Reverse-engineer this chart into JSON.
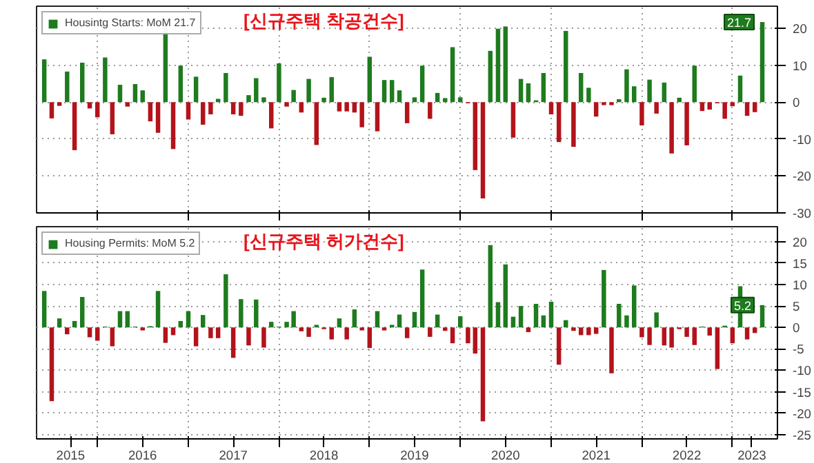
{
  "chart_data": [
    {
      "type": "bar",
      "title": "[신규주택 착공건수]",
      "legend": "top left",
      "grid": true,
      "tick_labels": "y",
      "x": [
        "2015-06",
        "2015-07",
        "2015-08",
        "2015-09",
        "2015-10",
        "2015-11",
        "2015-12",
        "2016-01",
        "2016-02",
        "2016-03",
        "2016-04",
        "2016-05",
        "2016-06",
        "2016-07",
        "2016-08",
        "2016-09",
        "2016-10",
        "2016-11",
        "2016-12",
        "2017-01",
        "2017-02",
        "2017-03",
        "2017-04",
        "2017-05",
        "2017-06",
        "2017-07",
        "2017-08",
        "2017-09",
        "2017-10",
        "2017-11",
        "2017-12",
        "2018-01",
        "2018-02",
        "2018-03",
        "2018-04",
        "2018-05",
        "2018-06",
        "2018-07",
        "2018-08",
        "2018-09",
        "2018-10",
        "2018-11",
        "2018-12",
        "2019-01",
        "2019-02",
        "2019-03",
        "2019-04",
        "2019-05",
        "2019-06",
        "2019-07",
        "2019-08",
        "2019-09",
        "2019-10",
        "2019-11",
        "2019-12",
        "2020-01",
        "2020-02",
        "2020-03",
        "2020-04",
        "2020-05",
        "2020-06",
        "2020-07",
        "2020-08",
        "2020-09",
        "2020-10",
        "2020-11",
        "2020-12",
        "2021-01",
        "2021-02",
        "2021-03",
        "2021-04",
        "2021-05",
        "2021-06",
        "2021-07",
        "2021-08",
        "2021-09",
        "2021-10",
        "2021-11",
        "2021-12",
        "2022-01",
        "2022-02",
        "2022-03",
        "2022-04",
        "2022-05",
        "2022-06",
        "2022-07",
        "2022-08",
        "2022-09",
        "2022-10",
        "2022-11",
        "2022-12",
        "2023-01",
        "2023-02",
        "2023-03",
        "2023-04",
        "2023-05"
      ],
      "xlim": [
        "2015-05",
        "2023-07"
      ],
      "xticks": [
        {
          "value": "2016-01",
          "label": null
        },
        {
          "value": "2017-01",
          "label": null
        },
        {
          "value": "2018-01",
          "label": null
        },
        {
          "value": "2019-01",
          "label": null
        },
        {
          "value": "2020-01",
          "label": null
        },
        {
          "value": "2021-01",
          "label": null
        },
        {
          "value": "2022-01",
          "label": null
        },
        {
          "value": "2023-01",
          "label": null
        }
      ],
      "ylim": [
        -30,
        26
      ],
      "yticks": [
        20,
        10,
        0,
        -10,
        -20,
        -30
      ],
      "annotations": [
        {
          "text": "21.7",
          "x": "2023-05",
          "y": 21.7
        }
      ],
      "series": [
        {
          "name": "Housintg Starts: MoM 21.7",
          "values": [
            11.6,
            -4.4,
            -1,
            8.3,
            -13,
            10.7,
            -1.7,
            -4.1,
            12.1,
            -8.7,
            4.7,
            -1.2,
            4.9,
            3.2,
            -5.2,
            -8.3,
            22.7,
            -12.7,
            9.9,
            -4.7,
            6.9,
            -6.1,
            -3.3,
            0.9,
            7.9,
            -3.3,
            -3.7,
            1.9,
            6.5,
            1.3,
            -7.1,
            10.5,
            -1.2,
            3.3,
            -2.8,
            6.3,
            -11.6,
            1.2,
            6.8,
            -2.5,
            -2.5,
            -2.8,
            -6.8,
            12.3,
            -7.9,
            6,
            6,
            3.2,
            -5.7,
            1.3,
            9.9,
            -4.5,
            2.5,
            1.1,
            14.9,
            1.3,
            -0.3,
            -18.4,
            -26.1,
            13.9,
            19.9,
            20.5,
            -9.6,
            6.3,
            5.1,
            0.5,
            7.9,
            -3.3,
            -10.8,
            19.3,
            -12.1,
            7.9,
            3.9,
            -3.9,
            -0.8,
            -0.8,
            0.8,
            8.9,
            4.3,
            -6.3,
            6.1,
            -3.1,
            5.3,
            -13.9,
            1.2,
            -11.7,
            9.9,
            -2.4,
            -2,
            -0.3,
            -4.5,
            -1.1,
            7.2,
            -3.7,
            -2.7,
            21.7
          ],
          "colors": [
            "#1e7b1e",
            "#b3131b",
            "#b3131b",
            "#1e7b1e",
            "#b3131b",
            "#1e7b1e",
            "#b3131b",
            "#b3131b",
            "#1e7b1e",
            "#b3131b",
            "#1e7b1e",
            "#b3131b",
            "#1e7b1e",
            "#1e7b1e",
            "#b3131b",
            "#b3131b",
            "#1e7b1e",
            "#b3131b",
            "#1e7b1e",
            "#b3131b",
            "#1e7b1e",
            "#b3131b",
            "#b3131b",
            "#1e7b1e",
            "#1e7b1e",
            "#b3131b",
            "#b3131b",
            "#1e7b1e",
            "#1e7b1e",
            "#1e7b1e",
            "#b3131b",
            "#1e7b1e",
            "#b3131b",
            "#1e7b1e",
            "#b3131b",
            "#1e7b1e",
            "#b3131b",
            "#1e7b1e",
            "#1e7b1e",
            "#b3131b",
            "#b3131b",
            "#b3131b",
            "#b3131b",
            "#1e7b1e",
            "#b3131b",
            "#1e7b1e",
            "#1e7b1e",
            "#1e7b1e",
            "#b3131b",
            "#1e7b1e",
            "#1e7b1e",
            "#b3131b",
            "#1e7b1e",
            "#1e7b1e",
            "#1e7b1e",
            "#1e7b1e",
            "#b3131b",
            "#b3131b",
            "#b3131b",
            "#1e7b1e",
            "#1e7b1e",
            "#1e7b1e",
            "#b3131b",
            "#1e7b1e",
            "#1e7b1e",
            "#1e7b1e",
            "#1e7b1e",
            "#b3131b",
            "#b3131b",
            "#1e7b1e",
            "#b3131b",
            "#1e7b1e",
            "#1e7b1e",
            "#b3131b",
            "#b3131b",
            "#b3131b",
            "#1e7b1e",
            "#1e7b1e",
            "#1e7b1e",
            "#b3131b",
            "#1e7b1e",
            "#b3131b",
            "#1e7b1e",
            "#b3131b",
            "#1e7b1e",
            "#b3131b",
            "#1e7b1e",
            "#b3131b",
            "#b3131b",
            "#b3131b",
            "#b3131b",
            "#b3131b",
            "#1e7b1e",
            "#b3131b",
            "#b3131b",
            "#1e7b1e"
          ]
        }
      ]
    },
    {
      "type": "bar",
      "title": "[신규주택 허가건수]",
      "legend": "top left",
      "grid": true,
      "x": [
        "2015-06",
        "2015-07",
        "2015-08",
        "2015-09",
        "2015-10",
        "2015-11",
        "2015-12",
        "2016-01",
        "2016-02",
        "2016-03",
        "2016-04",
        "2016-05",
        "2016-06",
        "2016-07",
        "2016-08",
        "2016-09",
        "2016-10",
        "2016-11",
        "2016-12",
        "2017-01",
        "2017-02",
        "2017-03",
        "2017-04",
        "2017-05",
        "2017-06",
        "2017-07",
        "2017-08",
        "2017-09",
        "2017-10",
        "2017-11",
        "2017-12",
        "2018-01",
        "2018-02",
        "2018-03",
        "2018-04",
        "2018-05",
        "2018-06",
        "2018-07",
        "2018-08",
        "2018-09",
        "2018-10",
        "2018-11",
        "2018-12",
        "2019-01",
        "2019-02",
        "2019-03",
        "2019-04",
        "2019-05",
        "2019-06",
        "2019-07",
        "2019-08",
        "2019-09",
        "2019-10",
        "2019-11",
        "2019-12",
        "2020-01",
        "2020-02",
        "2020-03",
        "2020-04",
        "2020-05",
        "2020-06",
        "2020-07",
        "2020-08",
        "2020-09",
        "2020-10",
        "2020-11",
        "2020-12",
        "2021-01",
        "2021-02",
        "2021-03",
        "2021-04",
        "2021-05",
        "2021-06",
        "2021-07",
        "2021-08",
        "2021-09",
        "2021-10",
        "2021-11",
        "2021-12",
        "2022-01",
        "2022-02",
        "2022-03",
        "2022-04",
        "2022-05",
        "2022-06",
        "2022-07",
        "2022-08",
        "2022-09",
        "2022-10",
        "2022-11",
        "2022-12",
        "2023-01",
        "2023-02",
        "2023-03",
        "2023-04",
        "2023-05"
      ],
      "xlim": [
        "2015-05",
        "2023-07"
      ],
      "xticks": [
        {
          "value": "2015-09-15",
          "label": "2015"
        },
        {
          "value": "2016-01",
          "label": null
        },
        {
          "value": "2016-07",
          "label": "2016"
        },
        {
          "value": "2017-01",
          "label": null
        },
        {
          "value": "2017-07",
          "label": "2017"
        },
        {
          "value": "2018-01",
          "label": null
        },
        {
          "value": "2018-07",
          "label": "2018"
        },
        {
          "value": "2019-01",
          "label": null
        },
        {
          "value": "2019-07",
          "label": "2019"
        },
        {
          "value": "2020-01",
          "label": null
        },
        {
          "value": "2020-07",
          "label": "2020"
        },
        {
          "value": "2021-01",
          "label": null
        },
        {
          "value": "2021-07",
          "label": "2021"
        },
        {
          "value": "2022-01",
          "label": null
        },
        {
          "value": "2022-07",
          "label": "2022"
        },
        {
          "value": "2023-01",
          "label": null
        },
        {
          "value": "2023-03-20",
          "label": "2023"
        }
      ],
      "ylim": [
        -26,
        23.5
      ],
      "yticks": [
        20,
        15,
        10,
        5,
        0,
        -5,
        -10,
        -15,
        -20,
        -25
      ],
      "annotations": [
        {
          "text": "5.2",
          "x": "2023-05",
          "y": 5.2
        }
      ],
      "series": [
        {
          "name": "Housing Permits: MoM 5.2",
          "values": [
            8.5,
            -17.2,
            2.1,
            -1.6,
            1.5,
            7.1,
            -2.3,
            -3.1,
            0.2,
            -4.4,
            3.8,
            3.8,
            0.2,
            -0.7,
            0.3,
            8.5,
            -3.6,
            -1.8,
            1.5,
            3.8,
            -4.4,
            2.9,
            -2.5,
            -2.5,
            12.4,
            -7.1,
            6.6,
            -4.2,
            6.5,
            -4.7,
            1.3,
            0.2,
            1.3,
            3.8,
            -0.9,
            -2.2,
            0.6,
            -0.4,
            -2.8,
            2.1,
            -2.8,
            4.2,
            -0.7,
            -4.8,
            3.8,
            -0.7,
            0.6,
            3.0,
            -2.5,
            3.6,
            13.5,
            -2.2,
            3.0,
            -0.8,
            -3.7,
            2.6,
            -3.7,
            -6.1,
            -21.9,
            19.2,
            5.9,
            14.7,
            2.5,
            5.0,
            -1.1,
            5.5,
            2.8,
            6.0,
            -8.7,
            1.7,
            -0.8,
            -1.8,
            -1.8,
            -1.5,
            13.4,
            -10.7,
            5.5,
            2.8,
            9.8,
            -2.3,
            -4.1,
            3.5,
            -4.2,
            -4.7,
            -0.4,
            -2.2,
            -4.1,
            0.2,
            -1.9,
            -9.7,
            0.4,
            -3.7,
            9.6,
            -2.8,
            -1.3,
            5.2
          ],
          "colors": [
            "#1e7b1e",
            "#b3131b",
            "#1e7b1e",
            "#b3131b",
            "#1e7b1e",
            "#1e7b1e",
            "#b3131b",
            "#b3131b",
            "#1e7b1e",
            "#b3131b",
            "#1e7b1e",
            "#1e7b1e",
            "#1e7b1e",
            "#b3131b",
            "#1e7b1e",
            "#1e7b1e",
            "#b3131b",
            "#b3131b",
            "#1e7b1e",
            "#1e7b1e",
            "#b3131b",
            "#1e7b1e",
            "#b3131b",
            "#b3131b",
            "#1e7b1e",
            "#b3131b",
            "#1e7b1e",
            "#b3131b",
            "#1e7b1e",
            "#b3131b",
            "#1e7b1e",
            "#1e7b1e",
            "#1e7b1e",
            "#1e7b1e",
            "#b3131b",
            "#b3131b",
            "#1e7b1e",
            "#b3131b",
            "#b3131b",
            "#1e7b1e",
            "#b3131b",
            "#1e7b1e",
            "#b3131b",
            "#b3131b",
            "#1e7b1e",
            "#b3131b",
            "#1e7b1e",
            "#1e7b1e",
            "#b3131b",
            "#1e7b1e",
            "#1e7b1e",
            "#b3131b",
            "#1e7b1e",
            "#b3131b",
            "#b3131b",
            "#1e7b1e",
            "#b3131b",
            "#b3131b",
            "#b3131b",
            "#1e7b1e",
            "#1e7b1e",
            "#1e7b1e",
            "#1e7b1e",
            "#1e7b1e",
            "#b3131b",
            "#1e7b1e",
            "#1e7b1e",
            "#1e7b1e",
            "#b3131b",
            "#1e7b1e",
            "#b3131b",
            "#b3131b",
            "#b3131b",
            "#b3131b",
            "#1e7b1e",
            "#b3131b",
            "#1e7b1e",
            "#1e7b1e",
            "#1e7b1e",
            "#b3131b",
            "#b3131b",
            "#1e7b1e",
            "#b3131b",
            "#b3131b",
            "#b3131b",
            "#b3131b",
            "#b3131b",
            "#1e7b1e",
            "#b3131b",
            "#b3131b",
            "#1e7b1e",
            "#b3131b",
            "#1e7b1e",
            "#b3131b",
            "#b3131b",
            "#1e7b1e"
          ]
        }
      ]
    }
  ]
}
